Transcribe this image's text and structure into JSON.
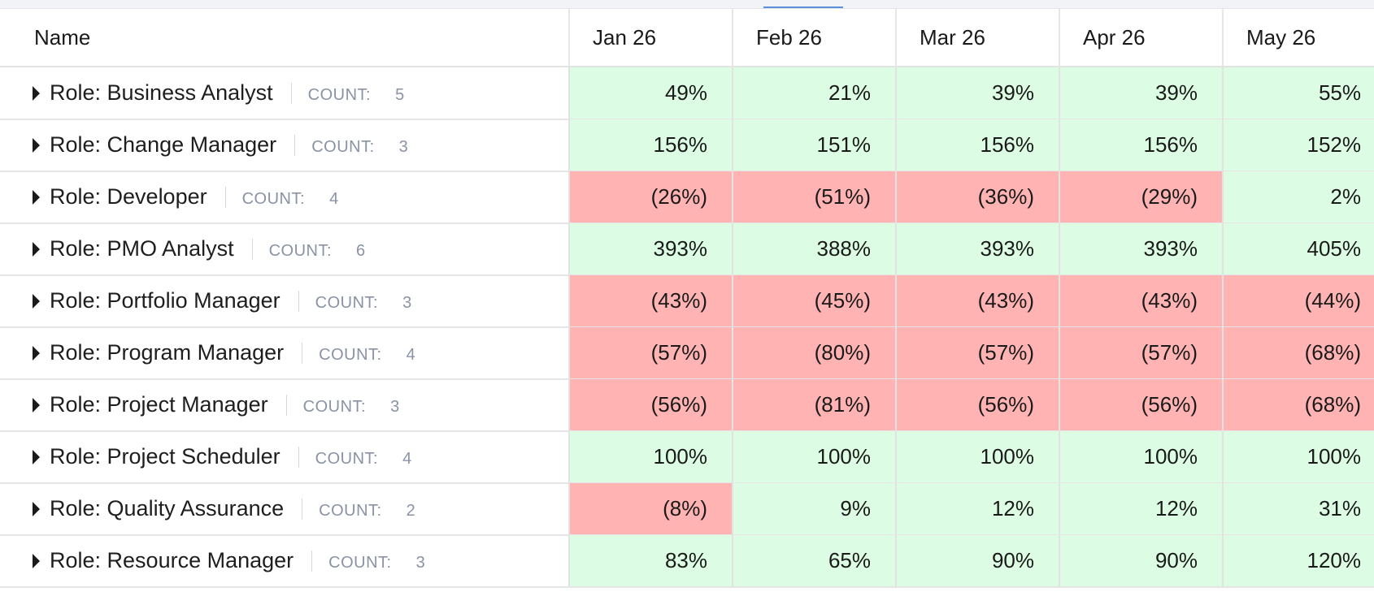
{
  "colors": {
    "positive": "#dcfce3",
    "negative": "#ffb3b3"
  },
  "header": {
    "name_label": "Name",
    "months": [
      "Jan 26",
      "Feb 26",
      "Mar 26",
      "Apr 26",
      "May 26"
    ]
  },
  "count_label": "COUNT:",
  "rows": [
    {
      "role": "Role: Business Analyst",
      "count": "5",
      "values": [
        "49%",
        "21%",
        "39%",
        "39%",
        "55%"
      ]
    },
    {
      "role": "Role: Change Manager",
      "count": "3",
      "values": [
        "156%",
        "151%",
        "156%",
        "156%",
        "152%"
      ]
    },
    {
      "role": "Role: Developer",
      "count": "4",
      "values": [
        "(26%)",
        "(51%)",
        "(36%)",
        "(29%)",
        "2%"
      ]
    },
    {
      "role": "Role: PMO Analyst",
      "count": "6",
      "values": [
        "393%",
        "388%",
        "393%",
        "393%",
        "405%"
      ]
    },
    {
      "role": "Role: Portfolio Manager",
      "count": "3",
      "values": [
        "(43%)",
        "(45%)",
        "(43%)",
        "(43%)",
        "(44%)"
      ]
    },
    {
      "role": "Role: Program Manager",
      "count": "4",
      "values": [
        "(57%)",
        "(80%)",
        "(57%)",
        "(57%)",
        "(68%)"
      ]
    },
    {
      "role": "Role: Project Manager",
      "count": "3",
      "values": [
        "(56%)",
        "(81%)",
        "(56%)",
        "(56%)",
        "(68%)"
      ]
    },
    {
      "role": "Role: Project Scheduler",
      "count": "4",
      "values": [
        "100%",
        "100%",
        "100%",
        "100%",
        "100%"
      ]
    },
    {
      "role": "Role: Quality Assurance",
      "count": "2",
      "values": [
        "(8%)",
        "9%",
        "12%",
        "12%",
        "31%"
      ]
    },
    {
      "role": "Role: Resource Manager",
      "count": "3",
      "values": [
        "83%",
        "65%",
        "90%",
        "90%",
        "120%"
      ]
    }
  ]
}
